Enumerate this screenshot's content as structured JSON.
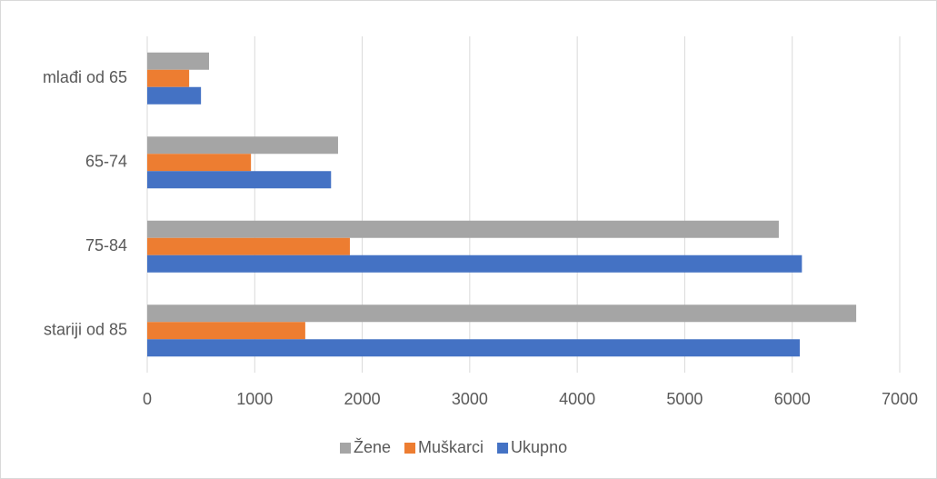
{
  "chart_data": {
    "type": "hbar",
    "categories": [
      "mlađi od 65",
      "65-74",
      "75-84",
      "stariji od 85"
    ],
    "series": [
      {
        "name": "Žene",
        "color": "#a5a5a5",
        "values": [
          575,
          1775,
          5875,
          6595
        ]
      },
      {
        "name": "Muškarci",
        "color": "#ed7d31",
        "values": [
          390,
          965,
          1885,
          1470
        ]
      },
      {
        "name": "Ukupno",
        "color": "#4472c4",
        "values": [
          500,
          1710,
          6090,
          6070
        ]
      }
    ],
    "xlim": [
      0,
      7000
    ],
    "xticks": [
      0,
      1000,
      2000,
      3000,
      4000,
      5000,
      6000,
      7000
    ],
    "grid": true,
    "legend": "bottom"
  }
}
